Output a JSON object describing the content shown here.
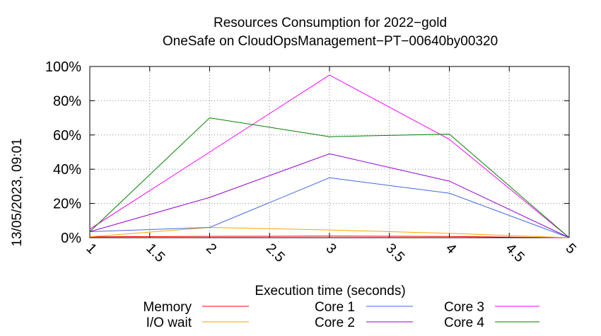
{
  "chart_data": {
    "type": "line",
    "title": "Resources Consumption for 2022−gold",
    "subtitle": "OneSafe on CloudOpsManagement−PT−00640by00320",
    "xlabel": "Execution time (seconds)",
    "ylabel": "",
    "timestamp": "13/05/2023, 09:01",
    "xlim": [
      1,
      5
    ],
    "ylim": [
      0,
      100
    ],
    "grid": true,
    "legend_position": "bottom",
    "x_ticks": [
      "1",
      "1.5",
      "2",
      "2.5",
      "3",
      "3.5",
      "4",
      "4.5",
      "5"
    ],
    "y_ticks": [
      "0%",
      "20%",
      "40%",
      "60%",
      "80%",
      "100%"
    ],
    "x": [
      1,
      2,
      3,
      4,
      5
    ],
    "series": [
      {
        "name": "Memory",
        "color": "#ff0000",
        "values": [
          0.5,
          0.8,
          0.9,
          0.7,
          0
        ]
      },
      {
        "name": "I/O wait",
        "color": "#ffa500",
        "values": [
          0.5,
          6,
          4.5,
          2.5,
          0
        ]
      },
      {
        "name": "Core 1",
        "color": "#4169e1",
        "values": [
          3.5,
          6,
          35,
          26,
          0
        ]
      },
      {
        "name": "Core 2",
        "color": "#9400d3",
        "values": [
          3.5,
          23.5,
          49,
          33,
          0
        ]
      },
      {
        "name": "Core 3",
        "color": "#ff00ff",
        "values": [
          5,
          50,
          95,
          57.5,
          0
        ]
      },
      {
        "name": "Core 4",
        "color": "#008000",
        "values": [
          3.5,
          70,
          59,
          60.5,
          0
        ]
      }
    ]
  }
}
